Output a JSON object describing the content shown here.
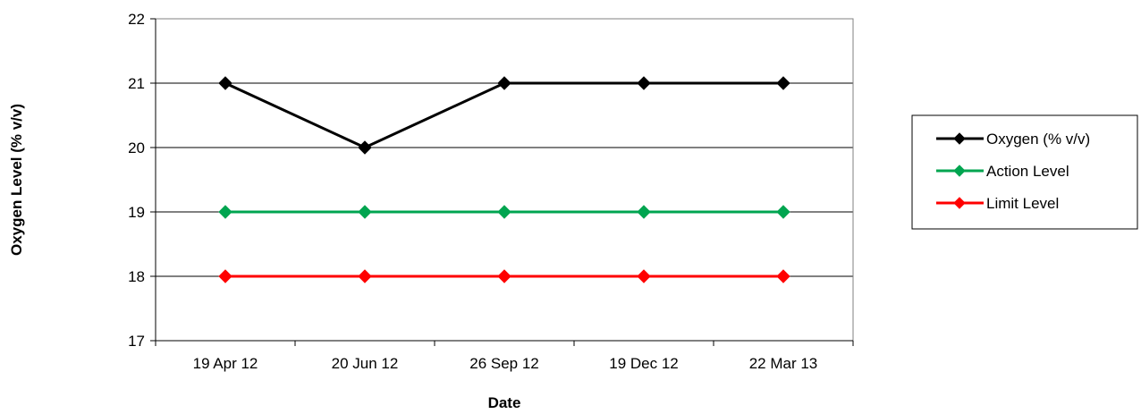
{
  "chart_data": {
    "type": "line",
    "title": "",
    "xlabel": "Date",
    "ylabel": "Oxygen Level (% v/v)",
    "categories": [
      "19 Apr 12",
      "20 Jun 12",
      "26 Sep 12",
      "19 Dec 12",
      "22 Mar 13"
    ],
    "ylim": [
      17,
      22
    ],
    "yticks": [
      17,
      18,
      19,
      20,
      21,
      22
    ],
    "grid": true,
    "legend_position": "right",
    "series": [
      {
        "name": "Oxygen (% v/v)",
        "values": [
          21,
          20,
          21,
          21,
          21
        ],
        "color": "#000000",
        "marker": "diamond"
      },
      {
        "name": "Action Level",
        "values": [
          19,
          19,
          19,
          19,
          19
        ],
        "color": "#00A550",
        "marker": "diamond"
      },
      {
        "name": "Limit Level",
        "values": [
          18,
          18,
          18,
          18,
          18
        ],
        "color": "#FF0000",
        "marker": "diamond"
      }
    ]
  }
}
